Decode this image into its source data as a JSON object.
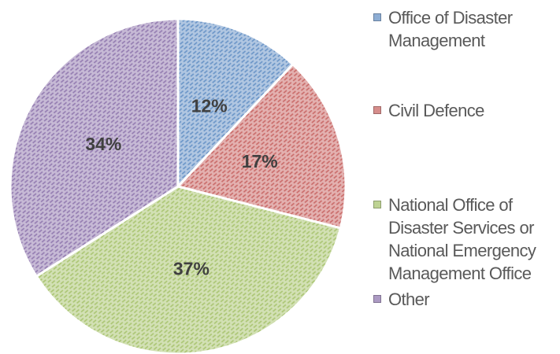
{
  "chart_data": {
    "type": "pie",
    "categories": [
      "Office of Disaster Management",
      "Civil Defence",
      "National Office of Disaster Services or National Emergency Management Office",
      "Other"
    ],
    "values": [
      12,
      17,
      37,
      34
    ],
    "value_labels": [
      "12%",
      "17%",
      "37%",
      "34%"
    ],
    "colors": [
      "#4f81bd",
      "#c0504d",
      "#9bbb59",
      "#8064a2"
    ],
    "legend": "right"
  }
}
